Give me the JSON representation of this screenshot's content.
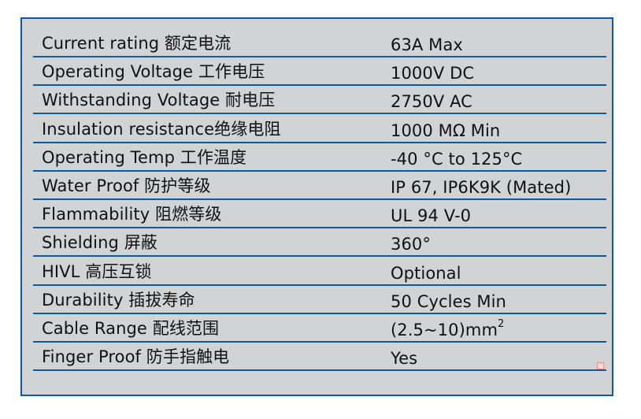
{
  "specs": [
    {
      "label": "Current rating 额定电流",
      "value": "63A Max"
    },
    {
      "label": "Operating Voltage 工作电压",
      "value": "1000V DC"
    },
    {
      "label": "Withstanding Voltage 耐电压",
      "value": "2750V AC"
    },
    {
      "label": "Insulation resistance绝缘电阻",
      "value": "1000 MΩ Min"
    },
    {
      "label": "Operating Temp 工作温度",
      "value": "-40 °C to 125°C"
    },
    {
      "label": "Water Proof 防护等级",
      "value": "IP 67, IP6K9K (Mated)"
    },
    {
      "label": "Flammability 阻燃等级",
      "value": "UL 94 V-0"
    },
    {
      "label": "Shielding 屏蔽",
      "value": "360°"
    },
    {
      "label": "HIVL 高压互锁",
      "value": "Optional"
    },
    {
      "label": "Durability 插拔寿命",
      "value": "50 Cycles Min"
    },
    {
      "label": "Cable Range 配线范围",
      "value": "(2.5~10)mm",
      "value_sup": "2"
    },
    {
      "label": "Finger Proof 防手指触电",
      "value": "Yes"
    }
  ],
  "colors": {
    "border": "#0d5aa0",
    "background": "#d2d3d5"
  }
}
